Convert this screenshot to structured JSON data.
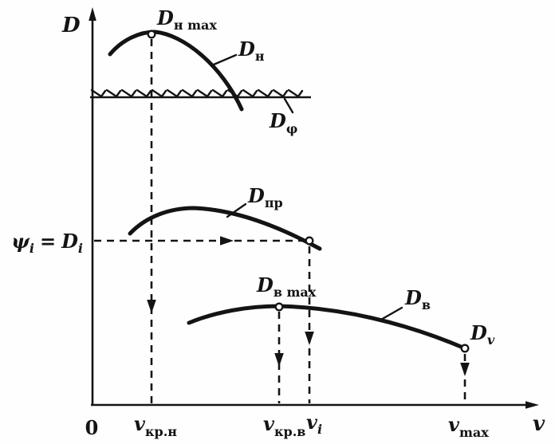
{
  "figure": {
    "background": "#fefefe",
    "ink_color": "#141414"
  },
  "axes": {
    "y_label": "D",
    "x_label": "v",
    "origin_label": "0"
  },
  "labels": {
    "dn_max": {
      "base": "D",
      "sub": "н max"
    },
    "dn": {
      "base": "D",
      "sub": "н"
    },
    "dphi": {
      "base": "D",
      "sub": "φ"
    },
    "dpr": {
      "base": "D",
      "sub": "пр"
    },
    "psi_equation": {
      "lhs_base": "ψ",
      "lhs_sub": "i",
      "equals": "=",
      "rhs_base": "D",
      "rhs_sub": "i"
    },
    "dv_max": {
      "base": "D",
      "sub": "в max"
    },
    "dv": {
      "base": "D",
      "sub": "в"
    },
    "d_v_point": {
      "base": "D",
      "sub": "v"
    }
  },
  "x_ticks": {
    "v_kr_n": {
      "base": "v",
      "sub": "кр.н"
    },
    "v_kr_v": {
      "base": "v",
      "sub": "кр.в"
    },
    "v_i": {
      "base": "v",
      "sub": "i"
    },
    "v_max": {
      "base": "v",
      "sub": "max"
    }
  }
}
